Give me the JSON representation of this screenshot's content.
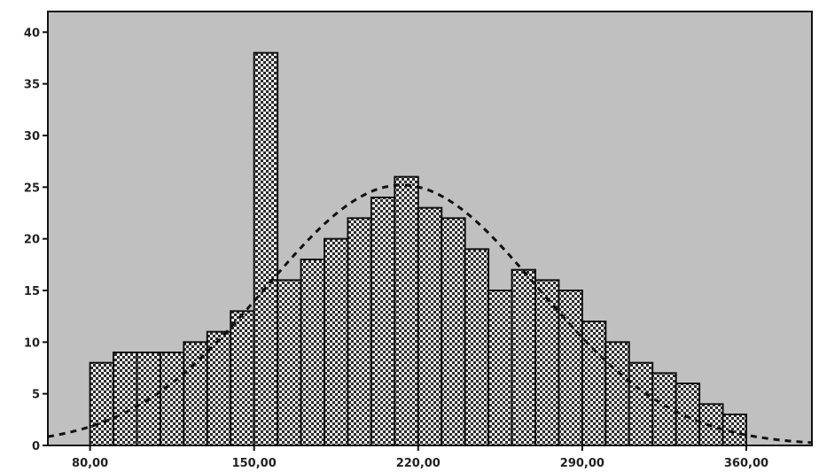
{
  "chart_data": {
    "type": "bar",
    "title": "",
    "xlabel": "",
    "ylabel": "",
    "bin_width": 10,
    "bins": [
      {
        "start": 80,
        "end": 90,
        "count": 8
      },
      {
        "start": 90,
        "end": 100,
        "count": 9
      },
      {
        "start": 100,
        "end": 110,
        "count": 9
      },
      {
        "start": 110,
        "end": 120,
        "count": 9
      },
      {
        "start": 120,
        "end": 130,
        "count": 10
      },
      {
        "start": 130,
        "end": 140,
        "count": 11
      },
      {
        "start": 140,
        "end": 150,
        "count": 13
      },
      {
        "start": 150,
        "end": 160,
        "count": 38
      },
      {
        "start": 160,
        "end": 170,
        "count": 16
      },
      {
        "start": 170,
        "end": 180,
        "count": 18
      },
      {
        "start": 180,
        "end": 190,
        "count": 20
      },
      {
        "start": 190,
        "end": 200,
        "count": 22
      },
      {
        "start": 200,
        "end": 210,
        "count": 24
      },
      {
        "start": 210,
        "end": 220,
        "count": 26
      },
      {
        "start": 220,
        "end": 230,
        "count": 23
      },
      {
        "start": 230,
        "end": 240,
        "count": 22
      },
      {
        "start": 240,
        "end": 250,
        "count": 19
      },
      {
        "start": 250,
        "end": 260,
        "count": 15
      },
      {
        "start": 260,
        "end": 270,
        "count": 17
      },
      {
        "start": 270,
        "end": 280,
        "count": 16
      },
      {
        "start": 280,
        "end": 290,
        "count": 15
      },
      {
        "start": 290,
        "end": 300,
        "count": 12
      },
      {
        "start": 300,
        "end": 310,
        "count": 10
      },
      {
        "start": 310,
        "end": 320,
        "count": 8
      },
      {
        "start": 320,
        "end": 330,
        "count": 7
      },
      {
        "start": 330,
        "end": 340,
        "count": 6
      },
      {
        "start": 340,
        "end": 350,
        "count": 4
      },
      {
        "start": 350,
        "end": 360,
        "count": 3
      }
    ],
    "normal_curve": {
      "mean": 213,
      "sd": 58,
      "peak": 25.2,
      "style": "dashed"
    },
    "xlim": [
      62,
      388
    ],
    "ylim": [
      0,
      42
    ],
    "x_ticks": [
      {
        "value": 80,
        "label": "80,00"
      },
      {
        "value": 150,
        "label": "150,00"
      },
      {
        "value": 220,
        "label": "220,00"
      },
      {
        "value": 290,
        "label": "290,00"
      },
      {
        "value": 360,
        "label": "360,00"
      }
    ],
    "y_ticks": [
      {
        "value": 0,
        "label": "0"
      },
      {
        "value": 5,
        "label": "5"
      },
      {
        "value": 10,
        "label": "10"
      },
      {
        "value": 15,
        "label": "15"
      },
      {
        "value": 20,
        "label": "20"
      },
      {
        "value": 25,
        "label": "25"
      },
      {
        "value": 30,
        "label": "30"
      },
      {
        "value": 35,
        "label": "35"
      },
      {
        "value": 40,
        "label": "40"
      }
    ],
    "grid": false,
    "legend": "none",
    "colors": {
      "plot_background": "#c0c0c0",
      "bar_outline": "#111111",
      "bar_pattern": "crosshatch",
      "curve": "#111111"
    }
  }
}
